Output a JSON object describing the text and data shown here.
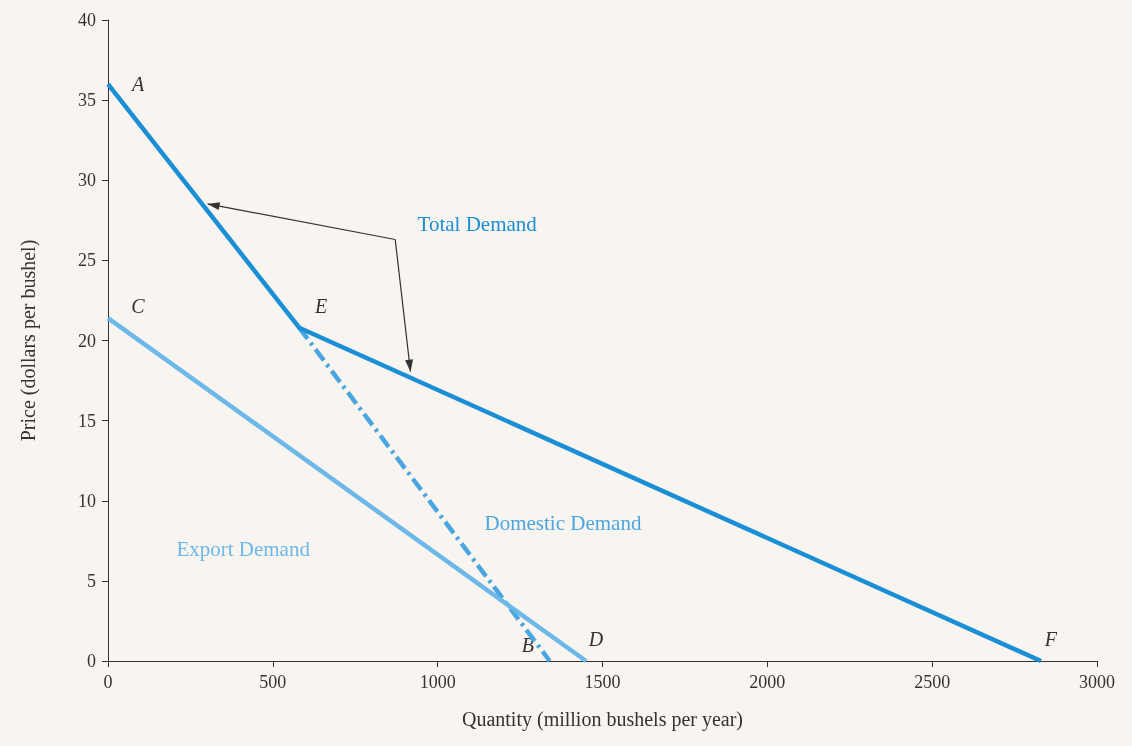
{
  "chart_data": {
    "type": "line",
    "xlabel": "Quantity (million bushels per year)",
    "ylabel": "Price (dollars per bushel)",
    "xlim": [
      0,
      3000
    ],
    "xticks": [
      0,
      500,
      1000,
      1500,
      2000,
      2500,
      3000
    ],
    "ylim": [
      0,
      40
    ],
    "yticks": [
      0,
      5,
      10,
      15,
      20,
      25,
      30,
      35,
      40
    ],
    "grid": false,
    "legend": false,
    "marker": "none",
    "series": [
      {
        "name": "Total Demand",
        "color": "#1a8fd6",
        "x": [
          0,
          580,
          2830
        ],
        "values": [
          36,
          20.8,
          0
        ],
        "line_style": "solid"
      },
      {
        "name": "Export Demand",
        "color": "#6cb8e8",
        "x": [
          0,
          1450
        ],
        "values": [
          21.4,
          0
        ],
        "line_style": "solid"
      },
      {
        "name": "Domestic Demand",
        "color": "#4aa6e0",
        "x": [
          580,
          1340
        ],
        "values": [
          20.8,
          0
        ],
        "line_style": "dashed"
      }
    ],
    "annotations": [
      {
        "text": "A",
        "x": 0,
        "y": 36
      },
      {
        "text": "C",
        "x": 0,
        "y": 21.4
      },
      {
        "text": "E",
        "x": 580,
        "y": 20.8
      },
      {
        "text": "B",
        "x": 1340,
        "y": 0
      },
      {
        "text": "D",
        "x": 1450,
        "y": 0
      },
      {
        "text": "F",
        "x": 2830,
        "y": 0
      }
    ]
  }
}
